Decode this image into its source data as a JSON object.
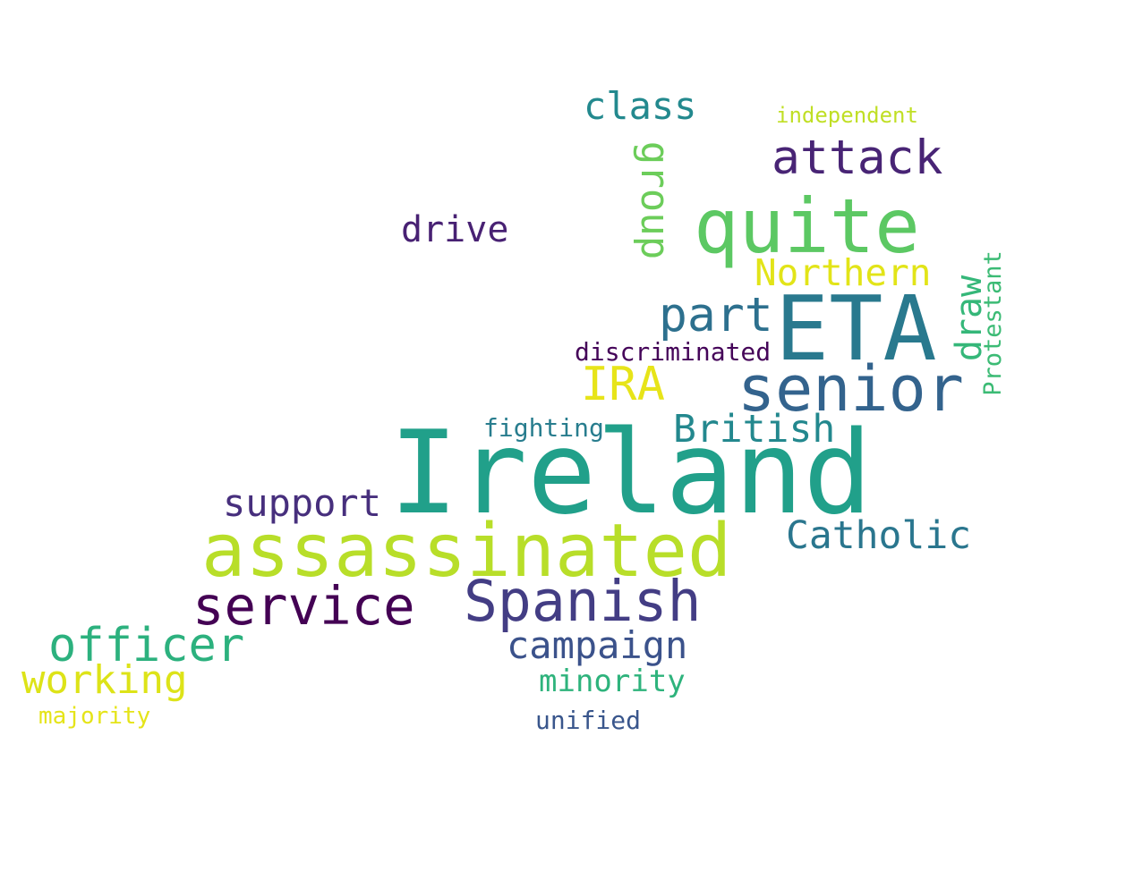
{
  "words": [
    {
      "text": "Ireland",
      "color": "#21a08a"
    },
    {
      "text": "assassinated",
      "color": "#b8de29"
    },
    {
      "text": "ETA",
      "color": "#29798e"
    },
    {
      "text": "quite",
      "color": "#5cc863"
    },
    {
      "text": "senior",
      "color": "#33638d"
    },
    {
      "text": "Spanish",
      "color": "#433d84"
    },
    {
      "text": "service",
      "color": "#440154"
    },
    {
      "text": "attack",
      "color": "#482475"
    },
    {
      "text": "officer",
      "color": "#2cb17e"
    },
    {
      "text": "part",
      "color": "#2d708e"
    },
    {
      "text": "IRA",
      "color": "#e7e419"
    },
    {
      "text": "Catholic",
      "color": "#2a768e"
    },
    {
      "text": "British",
      "color": "#23888e"
    },
    {
      "text": "working",
      "color": "#dde318"
    },
    {
      "text": "campaign",
      "color": "#3b528b"
    },
    {
      "text": "Northern",
      "color": "#e2e418"
    },
    {
      "text": "class",
      "color": "#23898e"
    },
    {
      "text": "support",
      "color": "#472f7d"
    },
    {
      "text": "drive",
      "color": "#482173"
    },
    {
      "text": "group",
      "color": "#6ccd5a"
    },
    {
      "text": "draw",
      "color": "#35b779"
    },
    {
      "text": "minority",
      "color": "#2eb37c"
    },
    {
      "text": "fighting",
      "color": "#287d8e"
    },
    {
      "text": "discriminated",
      "color": "#450559"
    },
    {
      "text": "unified",
      "color": "#39568c"
    },
    {
      "text": "Protestant",
      "color": "#3cbb75"
    },
    {
      "text": "majority",
      "color": "#e5e419"
    },
    {
      "text": "independent",
      "color": "#c0df25"
    }
  ]
}
